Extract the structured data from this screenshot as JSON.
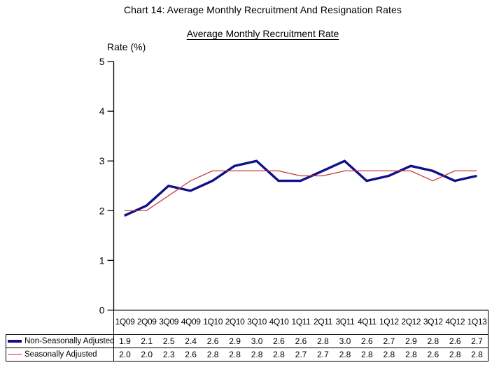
{
  "figure": {
    "title": "Chart 14: Average Monthly Recruitment And Resignation Rates",
    "subtitle": "Average Monthly Recruitment Rate",
    "y_axis_label": "Rate (%)"
  },
  "chart_data": {
    "type": "line",
    "title": "Average Monthly Recruitment Rate",
    "xlabel": "",
    "ylabel": "Rate (%)",
    "ylim": [
      0,
      5
    ],
    "y_ticks": [
      0,
      1,
      2,
      3,
      4,
      5
    ],
    "grid": false,
    "legend_position": "bottom-left data table",
    "categories": [
      "1Q09",
      "2Q09",
      "3Q09",
      "4Q09",
      "1Q10",
      "2Q10",
      "3Q10",
      "4Q10",
      "1Q11",
      "2Q11",
      "3Q11",
      "4Q11",
      "1Q12",
      "2Q12",
      "3Q12",
      "4Q12",
      "1Q13"
    ],
    "series": [
      {
        "name": "Non-Seasonally Adjusted",
        "color": "#10108a",
        "line_width": 3.4,
        "values": [
          1.9,
          2.1,
          2.5,
          2.4,
          2.6,
          2.9,
          3.0,
          2.6,
          2.6,
          2.8,
          3.0,
          2.6,
          2.7,
          2.9,
          2.8,
          2.6,
          2.7
        ]
      },
      {
        "name": "Seasonally Adjusted",
        "color": "#c63232",
        "line_width": 1.2,
        "values": [
          2.0,
          2.0,
          2.3,
          2.6,
          2.8,
          2.8,
          2.8,
          2.8,
          2.7,
          2.7,
          2.8,
          2.8,
          2.8,
          2.8,
          2.6,
          2.8,
          2.8
        ]
      }
    ],
    "axis_color": "#000000",
    "value_decimals": 1
  }
}
